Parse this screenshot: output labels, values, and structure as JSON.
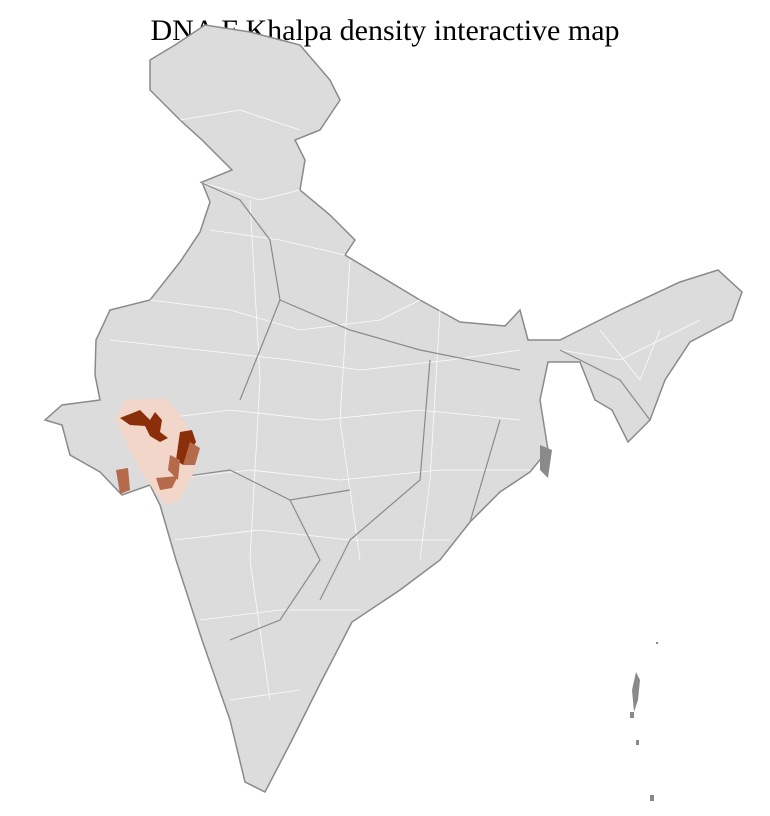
{
  "title": "DNA F Khalpa density interactive map",
  "map": {
    "region": "India districts",
    "base_color": "#dcdcdc",
    "border_color": "#8a8a8a",
    "district_border_color": "#ffffff",
    "scale_colors": {
      "high": "#8b2f0a",
      "medium": "#b56a4c",
      "low": "#f1d6c9"
    },
    "highlighted_area": "Gujarat"
  }
}
